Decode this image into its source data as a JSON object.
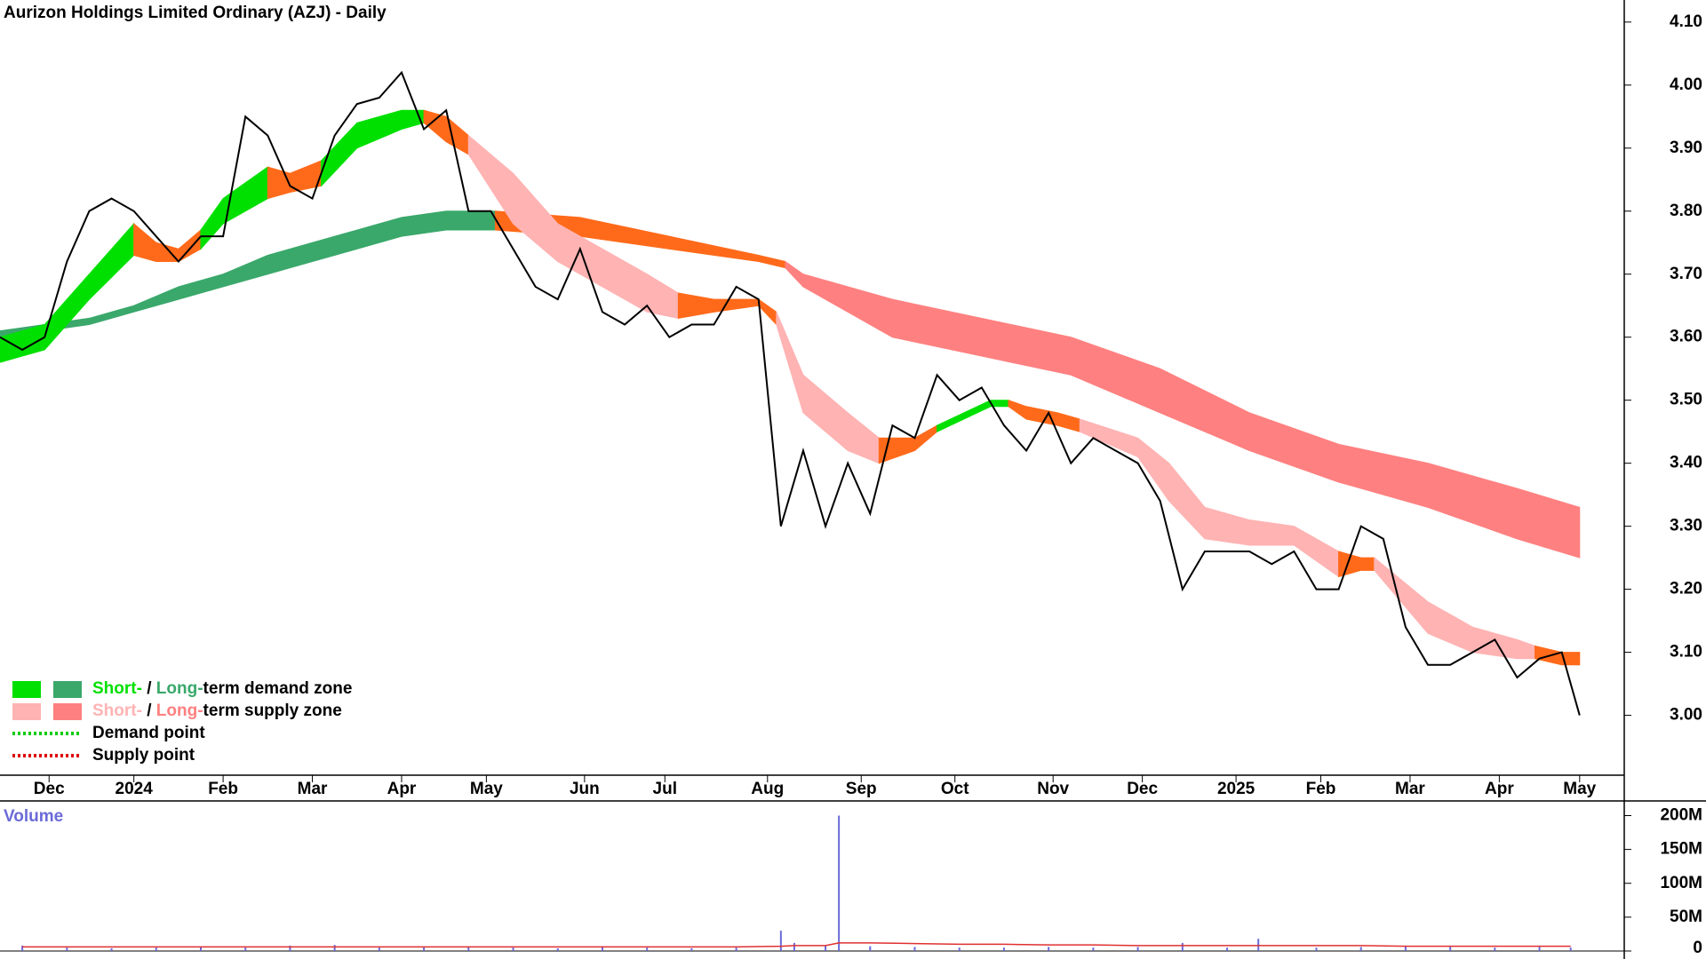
{
  "chart_data": {
    "type": "stock",
    "title": "Aurizon Holdings Limited Ordinary (AZJ) - Daily",
    "xlim": [
      0,
      364
    ],
    "xticks": [
      {
        "value": 11,
        "label": "Dec"
      },
      {
        "value": 30,
        "label": "2024"
      },
      {
        "value": 50,
        "label": "Feb"
      },
      {
        "value": 70,
        "label": "Mar"
      },
      {
        "value": 90,
        "label": "Apr"
      },
      {
        "value": 109,
        "label": "May"
      },
      {
        "value": 131,
        "label": "Jun"
      },
      {
        "value": 149,
        "label": "Jul"
      },
      {
        "value": 172,
        "label": "Aug"
      },
      {
        "value": 193,
        "label": "Sep"
      },
      {
        "value": 214,
        "label": "Oct"
      },
      {
        "value": 236,
        "label": "Nov"
      },
      {
        "value": 256,
        "label": "Dec"
      },
      {
        "value": 277,
        "label": "2025"
      },
      {
        "value": 296,
        "label": "Feb"
      },
      {
        "value": 316,
        "label": "Mar"
      },
      {
        "value": 336,
        "label": "Apr"
      },
      {
        "value": 354,
        "label": "May"
      }
    ],
    "ylim": [
      2.905,
      4.135
    ],
    "yticks": [
      {
        "value": 3.0,
        "label": "3.00"
      },
      {
        "value": 3.1,
        "label": "3.10"
      },
      {
        "value": 3.2,
        "label": "3.20"
      },
      {
        "value": 3.3,
        "label": "3.30"
      },
      {
        "value": 3.4,
        "label": "3.40"
      },
      {
        "value": 3.5,
        "label": "3.50"
      },
      {
        "value": 3.6,
        "label": "3.60"
      },
      {
        "value": 3.7,
        "label": "3.70"
      },
      {
        "value": 3.8,
        "label": "3.80"
      },
      {
        "value": 3.9,
        "label": "3.90"
      },
      {
        "value": 4.0,
        "label": "4.00"
      },
      {
        "value": 4.1,
        "label": "4.10"
      }
    ],
    "price": {
      "color": "#000000",
      "x": [
        0,
        5,
        10,
        15,
        20,
        25,
        30,
        35,
        40,
        45,
        50,
        55,
        60,
        65,
        70,
        75,
        80,
        85,
        90,
        95,
        100,
        105,
        110,
        115,
        120,
        125,
        130,
        135,
        140,
        145,
        150,
        155,
        160,
        165,
        170,
        175,
        180,
        185,
        190,
        195,
        200,
        205,
        210,
        215,
        220,
        225,
        230,
        235,
        240,
        245,
        250,
        255,
        260,
        265,
        270,
        275,
        280,
        285,
        290,
        295,
        300,
        305,
        310,
        315,
        320,
        325,
        330,
        335,
        340,
        345,
        350,
        354
      ],
      "values": [
        3.6,
        3.58,
        3.6,
        3.72,
        3.8,
        3.82,
        3.8,
        3.76,
        3.72,
        3.76,
        3.76,
        3.95,
        3.92,
        3.84,
        3.82,
        3.92,
        3.97,
        3.98,
        4.02,
        3.93,
        3.96,
        3.8,
        3.8,
        3.74,
        3.68,
        3.66,
        3.74,
        3.64,
        3.62,
        3.65,
        3.6,
        3.62,
        3.62,
        3.68,
        3.66,
        3.3,
        3.42,
        3.3,
        3.4,
        3.32,
        3.46,
        3.44,
        3.54,
        3.5,
        3.52,
        3.46,
        3.42,
        3.48,
        3.4,
        3.44,
        3.42,
        3.4,
        3.34,
        3.2,
        3.26,
        3.26,
        3.26,
        3.24,
        3.26,
        3.2,
        3.2,
        3.3,
        3.28,
        3.14,
        3.08,
        3.08,
        3.1,
        3.12,
        3.06,
        3.09,
        3.1,
        3.0
      ]
    },
    "zones": [
      {
        "color": "#3aa86b",
        "x": [
          0,
          20,
          30,
          40,
          50,
          60,
          70,
          80,
          90,
          100,
          111
        ],
        "upper": [
          3.61,
          3.63,
          3.65,
          3.68,
          3.7,
          3.73,
          3.75,
          3.77,
          3.79,
          3.8,
          3.8
        ],
        "lower": [
          3.6,
          3.62,
          3.64,
          3.66,
          3.68,
          3.7,
          3.72,
          3.74,
          3.76,
          3.77,
          3.77
        ]
      },
      {
        "color": "#ff6a1a",
        "x": [
          111,
          130,
          150,
          170,
          176
        ],
        "upper": [
          3.8,
          3.79,
          3.76,
          3.73,
          3.72
        ],
        "lower": [
          3.77,
          3.76,
          3.74,
          3.72,
          3.71
        ]
      },
      {
        "color": "#ff8080",
        "x": [
          176,
          180,
          200,
          220,
          240,
          260,
          280,
          300,
          320,
          340,
          354
        ],
        "upper": [
          3.72,
          3.7,
          3.66,
          3.63,
          3.6,
          3.55,
          3.48,
          3.43,
          3.4,
          3.36,
          3.33
        ],
        "lower": [
          3.71,
          3.68,
          3.6,
          3.57,
          3.54,
          3.48,
          3.42,
          3.37,
          3.33,
          3.28,
          3.25
        ]
      },
      {
        "color": "#00e000",
        "x": [
          0,
          10,
          20,
          30
        ],
        "upper": [
          3.6,
          3.62,
          3.7,
          3.78
        ],
        "lower": [
          3.56,
          3.58,
          3.66,
          3.73
        ]
      },
      {
        "color": "#ff6a1a",
        "x": [
          30,
          35,
          40,
          45
        ],
        "upper": [
          3.78,
          3.75,
          3.74,
          3.77
        ],
        "lower": [
          3.73,
          3.72,
          3.72,
          3.74
        ]
      },
      {
        "color": "#00e000",
        "x": [
          45,
          50,
          60
        ],
        "upper": [
          3.77,
          3.82,
          3.87
        ],
        "lower": [
          3.74,
          3.78,
          3.82
        ]
      },
      {
        "color": "#ff6a1a",
        "x": [
          60,
          65,
          72
        ],
        "upper": [
          3.87,
          3.86,
          3.88
        ],
        "lower": [
          3.82,
          3.83,
          3.84
        ]
      },
      {
        "color": "#00e000",
        "x": [
          72,
          80,
          90,
          95
        ],
        "upper": [
          3.88,
          3.94,
          3.96,
          3.96
        ],
        "lower": [
          3.84,
          3.9,
          3.93,
          3.94
        ]
      },
      {
        "color": "#ff6a1a",
        "x": [
          95,
          100,
          105
        ],
        "upper": [
          3.96,
          3.95,
          3.92
        ],
        "lower": [
          3.94,
          3.91,
          3.89
        ]
      },
      {
        "color": "#ffb3b3",
        "x": [
          105,
          115,
          125,
          135,
          145,
          152
        ],
        "upper": [
          3.92,
          3.86,
          3.78,
          3.74,
          3.7,
          3.67
        ],
        "lower": [
          3.89,
          3.78,
          3.72,
          3.68,
          3.64,
          3.63
        ]
      },
      {
        "color": "#ff6a1a",
        "x": [
          152,
          160,
          170,
          174
        ],
        "upper": [
          3.67,
          3.66,
          3.66,
          3.64
        ],
        "lower": [
          3.63,
          3.64,
          3.65,
          3.62
        ]
      },
      {
        "color": "#ffb3b3",
        "x": [
          174,
          180,
          190,
          197
        ],
        "upper": [
          3.64,
          3.54,
          3.48,
          3.44
        ],
        "lower": [
          3.62,
          3.48,
          3.42,
          3.4
        ]
      },
      {
        "color": "#ff6a1a",
        "x": [
          197,
          205,
          210
        ],
        "upper": [
          3.44,
          3.44,
          3.46
        ],
        "lower": [
          3.4,
          3.42,
          3.45
        ]
      },
      {
        "color": "#00e000",
        "x": [
          210,
          222,
          226
        ],
        "upper": [
          3.46,
          3.5,
          3.5
        ],
        "lower": [
          3.45,
          3.49,
          3.49
        ]
      },
      {
        "color": "#ff6a1a",
        "x": [
          226,
          230,
          237,
          242
        ],
        "upper": [
          3.5,
          3.49,
          3.48,
          3.47
        ],
        "lower": [
          3.49,
          3.47,
          3.46,
          3.45
        ]
      },
      {
        "color": "#ffb3b3",
        "x": [
          242,
          255,
          262,
          270,
          280,
          290,
          300
        ],
        "upper": [
          3.47,
          3.44,
          3.4,
          3.33,
          3.31,
          3.3,
          3.26
        ],
        "lower": [
          3.45,
          3.41,
          3.34,
          3.28,
          3.27,
          3.27,
          3.22
        ]
      },
      {
        "color": "#ff6a1a",
        "x": [
          300,
          305,
          308
        ],
        "upper": [
          3.26,
          3.25,
          3.25
        ],
        "lower": [
          3.22,
          3.23,
          3.23
        ]
      },
      {
        "color": "#ffb3b3",
        "x": [
          308,
          320,
          330,
          340,
          344
        ],
        "upper": [
          3.25,
          3.18,
          3.14,
          3.12,
          3.11
        ],
        "lower": [
          3.23,
          3.13,
          3.1,
          3.09,
          3.09
        ]
      },
      {
        "color": "#ff6a1a",
        "x": [
          344,
          350,
          354
        ],
        "upper": [
          3.11,
          3.1,
          3.1
        ],
        "lower": [
          3.09,
          3.08,
          3.08
        ]
      }
    ],
    "legend": [
      {
        "swatches": [
          "#00e000",
          "#3aa86b"
        ],
        "parts": [
          {
            "text": "Short-",
            "color": "#00e000"
          },
          {
            "text": " / ",
            "color": "#000000"
          },
          {
            "text": "Long-",
            "color": "#3aa86b"
          },
          {
            "text": "term demand zone",
            "color": "#000000"
          }
        ]
      },
      {
        "swatches": [
          "#ffb3b3",
          "#ff8080"
        ],
        "parts": [
          {
            "text": "Short-",
            "color": "#ffb3b3"
          },
          {
            "text": " / ",
            "color": "#000000"
          },
          {
            "text": "Long-",
            "color": "#ff8080"
          },
          {
            "text": "term supply zone",
            "color": "#000000"
          }
        ]
      },
      {
        "line": "#00cc00",
        "parts": [
          {
            "text": "Demand point",
            "color": "#000000"
          }
        ]
      },
      {
        "line": "#dd0000",
        "parts": [
          {
            "text": "Supply point",
            "color": "#000000"
          }
        ]
      }
    ],
    "volume": {
      "label": "Volume",
      "color": "#6a6ad8",
      "avg_color": "#e03030",
      "ylim": [
        0,
        219
      ],
      "yticks": [
        0,
        {
          "value": 50,
          "label": "50M"
        },
        {
          "value": 100,
          "label": "100M"
        },
        {
          "value": 150,
          "label": "150M"
        },
        {
          "value": 200,
          "label": "200M"
        }
      ],
      "x": [
        5,
        15,
        25,
        35,
        45,
        55,
        65,
        75,
        85,
        95,
        105,
        115,
        125,
        135,
        145,
        155,
        165,
        175,
        178,
        185,
        188,
        195,
        205,
        215,
        225,
        235,
        245,
        255,
        265,
        275,
        282,
        295,
        305,
        315,
        325,
        335,
        345,
        352
      ],
      "values": [
        8,
        5,
        4,
        5,
        6,
        5,
        8,
        9,
        5,
        6,
        6,
        5,
        4,
        7,
        5,
        4,
        5,
        30,
        12,
        8,
        200,
        7,
        6,
        5,
        5,
        6,
        5,
        6,
        12,
        5,
        18,
        5,
        6,
        7,
        6,
        5,
        6,
        5
      ],
      "avg": [
        6,
        6,
        6,
        6,
        6,
        6,
        6,
        6,
        6,
        6,
        6,
        6,
        6,
        6,
        6,
        6,
        6,
        7,
        8,
        8,
        12,
        12,
        11,
        10,
        10,
        9,
        9,
        8,
        8,
        8,
        8,
        8,
        8,
        7,
        7,
        7,
        7,
        7
      ]
    }
  }
}
